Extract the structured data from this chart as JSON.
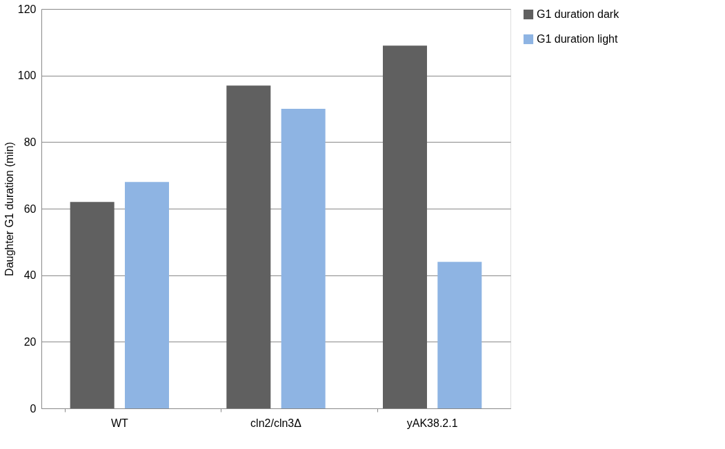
{
  "chart_data": {
    "type": "bar",
    "ylabel": "Daughter G1 duration (min)",
    "categories": [
      "WT",
      "cln2/cln3Δ",
      "yAK38.2.1"
    ],
    "series": [
      {
        "name": "G1 duration dark",
        "color": "#606060",
        "values": [
          62,
          97,
          109
        ]
      },
      {
        "name": "G1 duration light",
        "color": "#8eb4e3",
        "values": [
          68,
          90,
          44
        ]
      }
    ],
    "ylim": [
      0,
      120
    ],
    "yticks": [
      0,
      20,
      40,
      60,
      80,
      100,
      120
    ],
    "grid": "y",
    "legend": "right"
  }
}
